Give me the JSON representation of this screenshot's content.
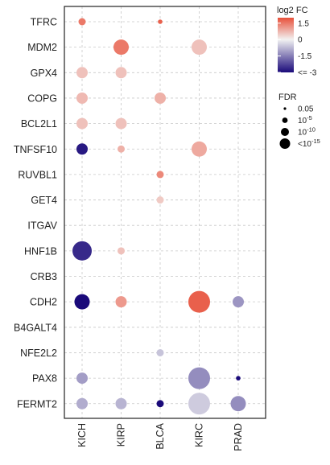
{
  "chart_data": {
    "type": "bubble-matrix",
    "genes": [
      "TFRC",
      "MDM2",
      "GPX4",
      "COPG",
      "BCL2L1",
      "TNFSF10",
      "RUVBL1",
      "GET4",
      "ITGAV",
      "HNF1B",
      "CRB3",
      "CDH2",
      "B4GALT4",
      "NFE2L2",
      "PAX8",
      "FERMT2"
    ],
    "cancers": [
      "KICH",
      "KIRP",
      "BLCA",
      "KIRC",
      "PRAD"
    ],
    "points": [
      {
        "gene": "TFRC",
        "cancer": "KICH",
        "log2fc": 1.5,
        "fdr_level": 1
      },
      {
        "gene": "TFRC",
        "cancer": "BLCA",
        "log2fc": 1.8,
        "fdr_level": 0
      },
      {
        "gene": "MDM2",
        "cancer": "KIRP",
        "log2fc": 1.5,
        "fdr_level": 3
      },
      {
        "gene": "MDM2",
        "cancer": "KIRC",
        "log2fc": 0.6,
        "fdr_level": 3
      },
      {
        "gene": "GPX4",
        "cancer": "KICH",
        "log2fc": 0.6,
        "fdr_level": 2
      },
      {
        "gene": "GPX4",
        "cancer": "KIRP",
        "log2fc": 0.6,
        "fdr_level": 2
      },
      {
        "gene": "COPG",
        "cancer": "KICH",
        "log2fc": 0.7,
        "fdr_level": 2
      },
      {
        "gene": "COPG",
        "cancer": "BLCA",
        "log2fc": 0.8,
        "fdr_level": 2
      },
      {
        "gene": "BCL2L1",
        "cancer": "KICH",
        "log2fc": 0.6,
        "fdr_level": 2
      },
      {
        "gene": "BCL2L1",
        "cancer": "KIRP",
        "log2fc": 0.6,
        "fdr_level": 2
      },
      {
        "gene": "TNFSF10",
        "cancer": "KICH",
        "log2fc": -2.8,
        "fdr_level": 2
      },
      {
        "gene": "TNFSF10",
        "cancer": "KIRP",
        "log2fc": 0.8,
        "fdr_level": 1
      },
      {
        "gene": "TNFSF10",
        "cancer": "KIRC",
        "log2fc": 0.9,
        "fdr_level": 3
      },
      {
        "gene": "RUVBL1",
        "cancer": "BLCA",
        "log2fc": 1.3,
        "fdr_level": 1
      },
      {
        "gene": "GET4",
        "cancer": "BLCA",
        "log2fc": 0.5,
        "fdr_level": 1
      },
      {
        "gene": "HNF1B",
        "cancer": "KICH",
        "log2fc": -2.6,
        "fdr_level": 4
      },
      {
        "gene": "HNF1B",
        "cancer": "KIRP",
        "log2fc": 0.6,
        "fdr_level": 1
      },
      {
        "gene": "CDH2",
        "cancer": "KICH",
        "log2fc": -3.0,
        "fdr_level": 3
      },
      {
        "gene": "CDH2",
        "cancer": "KIRP",
        "log2fc": 1.1,
        "fdr_level": 2
      },
      {
        "gene": "CDH2",
        "cancer": "KIRC",
        "log2fc": 1.8,
        "fdr_level": 5
      },
      {
        "gene": "CDH2",
        "cancer": "PRAD",
        "log2fc": -1.2,
        "fdr_level": 2
      },
      {
        "gene": "NFE2L2",
        "cancer": "BLCA",
        "log2fc": -0.6,
        "fdr_level": 1
      },
      {
        "gene": "PAX8",
        "cancer": "KICH",
        "log2fc": -1.1,
        "fdr_level": 2
      },
      {
        "gene": "PAX8",
        "cancer": "KIRC",
        "log2fc": -1.3,
        "fdr_level": 5
      },
      {
        "gene": "PAX8",
        "cancer": "PRAD",
        "log2fc": -3.0,
        "fdr_level": 0
      },
      {
        "gene": "FERMT2",
        "cancer": "KICH",
        "log2fc": -0.9,
        "fdr_level": 2
      },
      {
        "gene": "FERMT2",
        "cancer": "KIRP",
        "log2fc": -0.8,
        "fdr_level": 2
      },
      {
        "gene": "FERMT2",
        "cancer": "BLCA",
        "log2fc": -3.0,
        "fdr_level": 1
      },
      {
        "gene": "FERMT2",
        "cancer": "KIRC",
        "log2fc": -0.5,
        "fdr_level": 5
      },
      {
        "gene": "FERMT2",
        "cancer": "PRAD",
        "log2fc": -1.3,
        "fdr_level": 3
      }
    ],
    "color_legend": {
      "title": "log2 FC",
      "ticks": [
        {
          "value": 1.5,
          "label": "1.5"
        },
        {
          "value": 0,
          "label": "0"
        },
        {
          "value": -1.5,
          "label": "-1.5"
        },
        {
          "value": -3,
          "label": "<= -3"
        }
      ],
      "range": [
        -3,
        2
      ],
      "colors": {
        "high": "#e8503a",
        "mid": "#f2f2f2",
        "low": "#1a0a7a"
      }
    },
    "size_legend": {
      "title": "FDR",
      "items": [
        {
          "label": "0.05"
        },
        {
          "label_base": "10",
          "label_exp": "-5"
        },
        {
          "label_base": "10",
          "label_exp": "-10"
        },
        {
          "label_prefix": "<",
          "label_base": "10",
          "label_exp": "-15"
        }
      ]
    },
    "grid": true
  }
}
